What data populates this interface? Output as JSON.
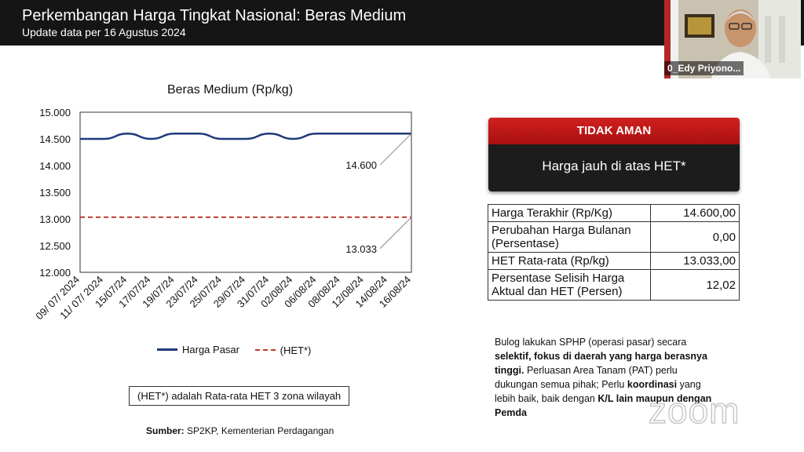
{
  "header": {
    "title": "Perkembangan Harga Tingkat Nasional: Beras Medium",
    "subtitle": "Update data per 16 Agustus 2024"
  },
  "video": {
    "participant_name": "0_Edy Priyono..."
  },
  "chart_data": {
    "type": "line",
    "title": "Beras Medium (Rp/kg)",
    "ylim": [
      12000,
      15000
    ],
    "yticks": [
      "15.000",
      "14.500",
      "14.000",
      "13.500",
      "13.000",
      "12.500",
      "12.000"
    ],
    "ytick_values": [
      15000,
      14500,
      14000,
      13500,
      13000,
      12500,
      12000
    ],
    "categories": [
      "09/ 07/ 2024",
      "11/ 07/ 2024",
      "15/07/24",
      "17/07/24",
      "19/07/24",
      "23/07/24",
      "25/07/24",
      "29/07/24",
      "31/07/24",
      "02/08/24",
      "06/08/24",
      "08/08/24",
      "12/08/24",
      "14/08/24",
      "16/08/24"
    ],
    "series": [
      {
        "name": "Harga Pasar",
        "color": "#1f3a7a",
        "style": "solid",
        "values": [
          14500,
          14500,
          14600,
          14500,
          14600,
          14600,
          14500,
          14500,
          14600,
          14500,
          14600,
          14600,
          14600,
          14600,
          14600
        ]
      },
      {
        "name": "(HET*)",
        "color": "#c0392b",
        "style": "dashed",
        "values": [
          13033,
          13033,
          13033,
          13033,
          13033,
          13033,
          13033,
          13033,
          13033,
          13033,
          13033,
          13033,
          13033,
          13033,
          13033
        ]
      }
    ],
    "annotations": [
      {
        "label": "14.600",
        "series": 0
      },
      {
        "label": "13.033",
        "series": 1
      }
    ],
    "legend": [
      "Harga Pasar",
      "(HET*)"
    ]
  },
  "note": "(HET*) adalah Rata-rata HET 3 zona wilayah",
  "source": {
    "label": "Sumber:",
    "text": "SP2KP, Kementerian Perdagangan"
  },
  "status": {
    "badge": "TIDAK AMAN",
    "message": "Harga jauh di atas HET*",
    "badge_color": "#c4191a"
  },
  "table": [
    {
      "label": "Harga Terakhir (Rp/Kg)",
      "value": "14.600,00"
    },
    {
      "label": "Perubahan Harga Bulanan (Persentase)",
      "value": "0,00"
    },
    {
      "label": "HET Rata-rata (Rp/kg)",
      "value": "13.033,00"
    },
    {
      "label": "Persentase Selisih Harga Aktual dan HET (Persen)",
      "value": "12,02"
    }
  ],
  "description": {
    "p1": "Bulog lakukan SPHP (operasi pasar) secara ",
    "b1": "selektif, fokus di daerah yang harga berasnya tinggi.",
    "p2": " Perluasan Area Tanam (PAT) perlu dukungan semua pihak; Perlu ",
    "b2": "koordinasi",
    "p3": " yang lebih baik, baik dengan ",
    "b3": "K/L lain maupun dengan Pemda"
  },
  "watermark": "zoom"
}
